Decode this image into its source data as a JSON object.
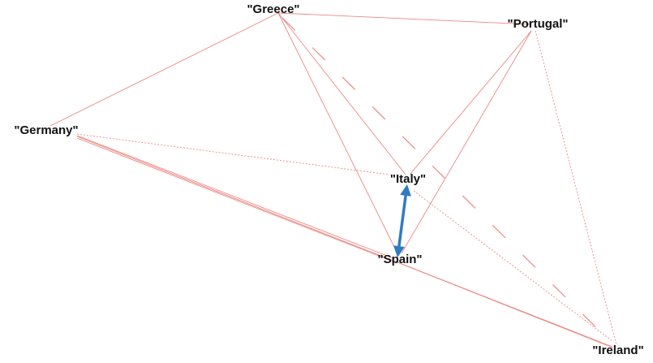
{
  "nodes": [
    {
      "label": "\"Greece\""
    },
    {
      "label": "\"Portugal\""
    },
    {
      "label": "\"Germany\""
    },
    {
      "label": "\"Italy\""
    },
    {
      "label": "\"Spain\""
    },
    {
      "label": "\"Ireland\""
    }
  ]
}
